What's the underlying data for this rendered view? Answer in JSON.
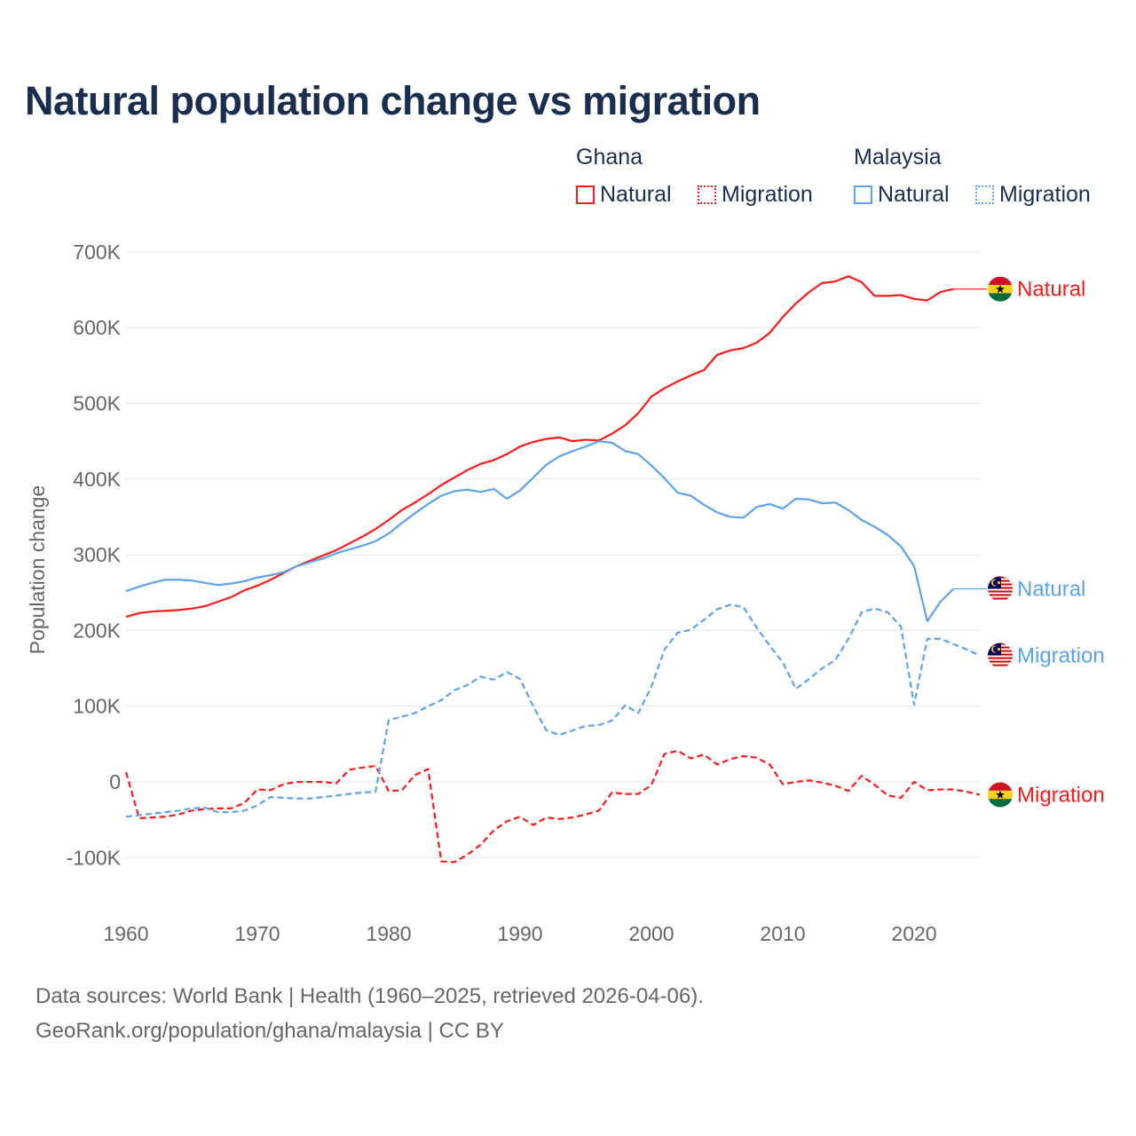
{
  "title": "Natural population change vs migration",
  "legend": {
    "groups": [
      {
        "name": "Ghana",
        "items": [
          "Natural",
          "Migration"
        ]
      },
      {
        "name": "Malaysia",
        "items": [
          "Natural",
          "Migration"
        ]
      }
    ]
  },
  "colors": {
    "ghana": "#ff1a1a",
    "malaysia": "#5ba3ec",
    "title": "#1a2e4f",
    "grid": "#e6e6e6",
    "axis_text": "#666666"
  },
  "footer": {
    "line1": "Data sources: World Bank | Health (1960–2025, retrieved 2026-04-06).",
    "line2": "GeoRank.org/population/ghana/malaysia | CC BY"
  },
  "chart_data": {
    "type": "line",
    "title": "Natural population change vs migration",
    "xlabel": "",
    "ylabel": "Population change",
    "xlim": [
      1960,
      2025
    ],
    "ylim": [
      -150000,
      700000
    ],
    "x_ticks": [
      1960,
      1970,
      1980,
      1990,
      2000,
      2010,
      2020
    ],
    "x_tick_labels": [
      "1960",
      "1970",
      "1980",
      "1990",
      "2000",
      "2010",
      "2020"
    ],
    "y_ticks": [
      -100000,
      0,
      100000,
      200000,
      300000,
      400000,
      500000,
      600000,
      700000
    ],
    "y_tick_labels": [
      "-100K",
      "0",
      "100K",
      "200K",
      "300K",
      "400K",
      "500K",
      "600K",
      "700K"
    ],
    "grid": true,
    "legend_position": "top-right",
    "series": [
      {
        "name": "Ghana Natural",
        "country": "ghana",
        "style": "solid",
        "end_label": "Natural",
        "start": 1960,
        "values": [
          218,
          223,
          225,
          226,
          227,
          229,
          232,
          238,
          244,
          253,
          259,
          267,
          276,
          285,
          292,
          299,
          306,
          315,
          324,
          334,
          346,
          359,
          369,
          380,
          392,
          402,
          412,
          420,
          425,
          433,
          443,
          449,
          453,
          455,
          450,
          452,
          451,
          460,
          471,
          487,
          509,
          520,
          529,
          537,
          544,
          564,
          570,
          573,
          580,
          593,
          614,
          632,
          647,
          659,
          661,
          668,
          660,
          642,
          642,
          643,
          638,
          636,
          647,
          651
        ]
      },
      {
        "name": "Ghana Migration",
        "country": "ghana",
        "style": "dashed",
        "end_label": "Migration",
        "start": 1960,
        "values": [
          13,
          -48,
          -47,
          -46,
          -43,
          -38,
          -36,
          -35,
          -35,
          -28,
          -10,
          -11,
          -3,
          0,
          0,
          0,
          -2,
          16,
          19,
          21,
          -12,
          -11,
          9,
          17,
          -105,
          -106,
          -96,
          -83,
          -64,
          -52,
          -46,
          -57,
          -47,
          -49,
          -47,
          -43,
          -38,
          -14,
          -16,
          -16,
          -4,
          37,
          41,
          31,
          36,
          23,
          30,
          34,
          32,
          23,
          -3,
          0,
          2,
          -1,
          -5,
          -12,
          8,
          -4,
          -18,
          -21,
          0,
          -11,
          -10,
          -10,
          -13,
          -17
        ]
      },
      {
        "name": "Malaysia Natural",
        "country": "malaysia",
        "style": "solid",
        "end_label": "Natural",
        "start": 1960,
        "values": [
          252,
          258,
          263,
          267,
          267,
          266,
          263,
          260,
          262,
          265,
          270,
          273,
          277,
          285,
          290,
          295,
          302,
          307,
          312,
          318,
          328,
          342,
          355,
          367,
          378,
          384,
          386,
          383,
          387,
          374,
          385,
          402,
          419,
          430,
          437,
          443,
          450,
          448,
          437,
          433,
          418,
          401,
          382,
          378,
          366,
          356,
          350,
          349,
          363,
          367,
          361,
          374,
          373,
          368,
          369,
          359,
          346,
          337,
          326,
          311,
          285,
          212,
          238,
          255
        ]
      },
      {
        "name": "Malaysia Migration",
        "country": "malaysia",
        "style": "dashed",
        "end_label": "Migration",
        "start": 1960,
        "values": [
          -46,
          -44,
          -42,
          -40,
          -38,
          -35,
          -34,
          -40,
          -40,
          -38,
          -31,
          -20,
          -21,
          -22,
          -22,
          -20,
          -18,
          -16,
          -14,
          -13,
          82,
          86,
          91,
          100,
          108,
          121,
          128,
          139,
          135,
          145,
          136,
          100,
          68,
          62,
          68,
          74,
          75,
          81,
          101,
          91,
          126,
          175,
          197,
          201,
          214,
          228,
          234,
          231,
          204,
          180,
          158,
          123,
          136,
          150,
          161,
          189,
          224,
          229,
          224,
          205,
          102,
          189,
          189,
          182,
          175,
          167
        ]
      }
    ],
    "value_unit": "thousands"
  }
}
